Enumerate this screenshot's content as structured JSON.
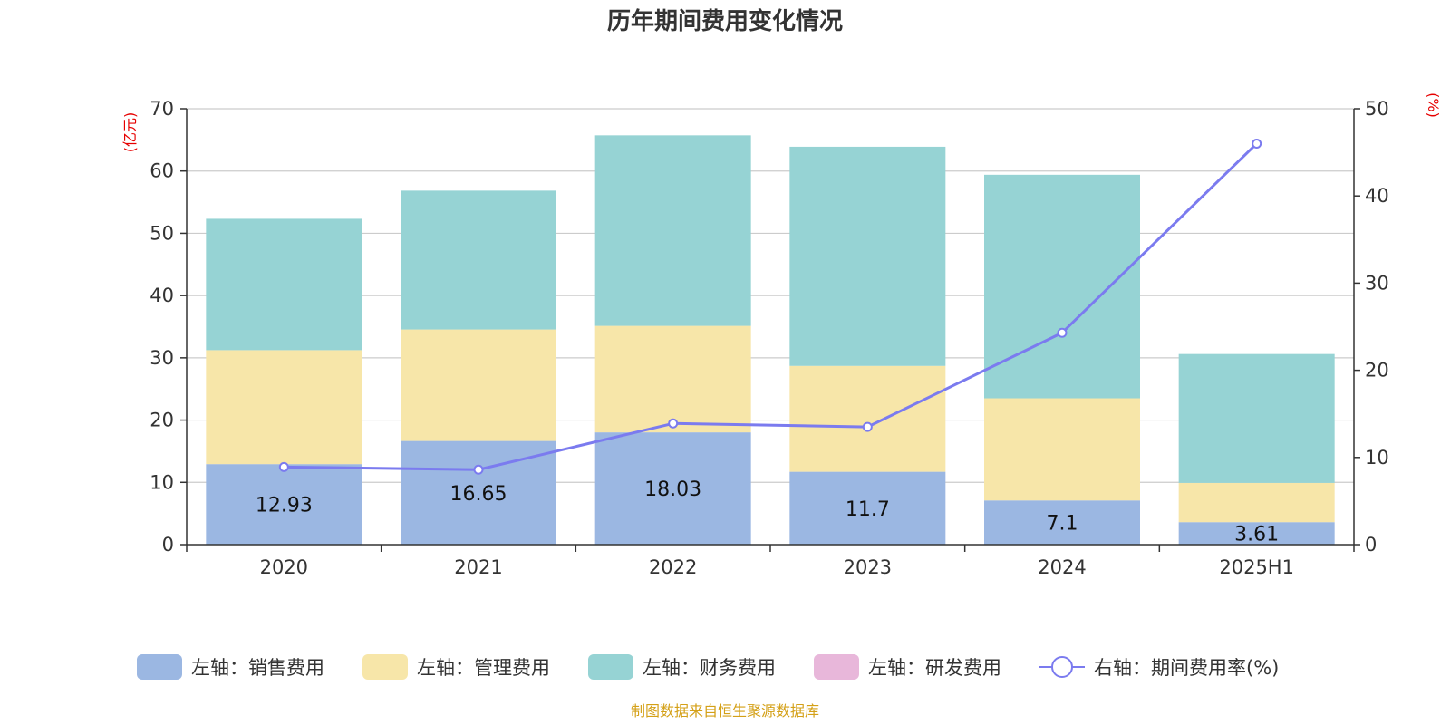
{
  "chart_data": {
    "type": "bar",
    "title": "历年期间费用变化情况",
    "categories": [
      "2020",
      "2021",
      "2022",
      "2023",
      "2024",
      "2025H1"
    ],
    "y_left": {
      "unit": "(亿元)",
      "range": [
        0,
        70
      ],
      "ticks": [
        0,
        10,
        20,
        30,
        40,
        50,
        60,
        70
      ]
    },
    "y_right": {
      "unit": "(%)",
      "range": [
        0,
        50
      ],
      "ticks": [
        0,
        10,
        20,
        30,
        40,
        50
      ]
    },
    "grid": true,
    "legend_position": "bottom",
    "series": [
      {
        "name": "左轴：销售费用",
        "type": "bar",
        "axis": "left",
        "color": "#9bb7e2",
        "values": [
          12.93,
          16.65,
          18.03,
          11.7,
          7.1,
          3.61
        ],
        "labels": [
          "12.93",
          "16.65",
          "18.03",
          "11.7",
          "7.1",
          "3.61"
        ]
      },
      {
        "name": "左轴：管理费用",
        "type": "bar",
        "axis": "left",
        "color": "#f7e6a9",
        "values": [
          18.3,
          17.9,
          17.1,
          17.0,
          16.4,
          6.3
        ]
      },
      {
        "name": "左轴：财务费用",
        "type": "bar",
        "axis": "left",
        "color": "#96d3d4",
        "values": [
          21.1,
          22.3,
          30.6,
          35.2,
          35.9,
          20.7
        ]
      },
      {
        "name": "左轴：研发费用",
        "type": "bar",
        "axis": "left",
        "color": "#e8b7da",
        "values": [
          0,
          0,
          0,
          0,
          0,
          0
        ]
      },
      {
        "name": "右轴：期间费用率(%)",
        "type": "line",
        "axis": "right",
        "color": "#7b7bef",
        "values": [
          8.9,
          8.6,
          13.9,
          13.5,
          24.3,
          46.0
        ]
      }
    ],
    "source": "制图数据来自恒生聚源数据库"
  }
}
